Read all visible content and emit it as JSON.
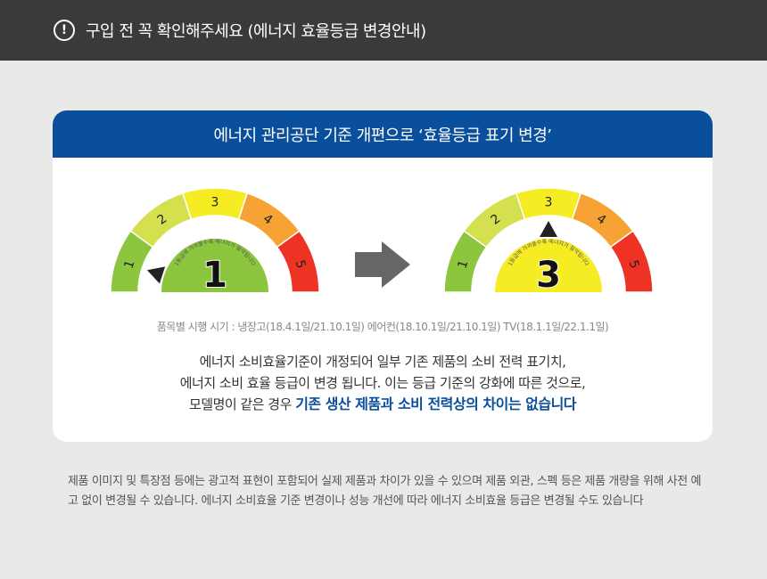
{
  "header": {
    "icon": "exclamation-circle-icon",
    "title": "구입 전 꼭 확인해주세요 (에너지 효율등급 변경안내)"
  },
  "card": {
    "title": "에너지 관리공단 기준 개편으로 ‘효율등급 표기 변경’",
    "gauge_labels": [
      "1",
      "2",
      "3",
      "4",
      "5"
    ],
    "gauge_colors": [
      "#8cc63f",
      "#d4e04e",
      "#f5ec24",
      "#f7a234",
      "#ee3224"
    ],
    "before": {
      "grade": "1",
      "caption": "1등급에 가까울수록 에너지가 절약됩니다"
    },
    "after": {
      "grade": "3",
      "caption": "1등급에 가까울수록 에너지가 절약됩니다"
    },
    "arrow_icon": "arrow-right-icon",
    "schedule": "품목별 시행 시기 : 냉장고(18.4.1일/21.10.1일) 에어컨(18.10.1일/21.10.1일) TV(18.1.1일/22.1.1일)",
    "desc_line1": "에너지 소비효율기준이 개정되어 일부 기존 제품의 소비 전력 표기치,",
    "desc_line2": "에너지 소비 효율 등급이 변경 됩니다. 이는 등급 기준의 강화에 따른 것으로,",
    "desc_line3_prefix": "모델명이 같은 경우 ",
    "desc_line3_emphasis": "기존 생산 제품과 소비 전력상의 차이는 없습니다"
  },
  "footer": "제품 이미지 및 특장점 등에는 광고적 표현이 포함되어 실제 제품과 차이가 있을 수 있으며 제품 외관, 스펙 등은 제품 개량을 위해 사전 예고 없이 변경될 수 있습니다.  에너지 소비효율 기준 변경이나 성능 개선에 따라 에너지 소비효율 등급은 변경될 수도 있습니다"
}
